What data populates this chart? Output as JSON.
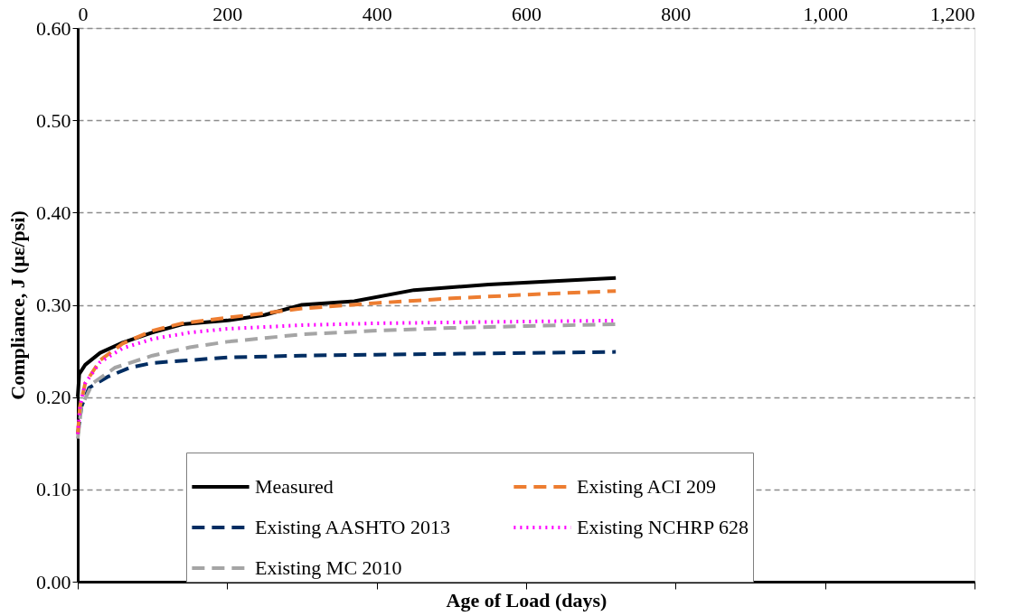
{
  "chart_data": {
    "type": "line",
    "xlabel": "Age of Load (days)",
    "ylabel": "Compliance, J (με/psi)",
    "xlim": [
      0,
      1200
    ],
    "xticks": [
      0,
      200,
      400,
      600,
      800,
      {
        "value": 1000,
        "label": "1,000"
      },
      {
        "value": 1200,
        "label": "1,200"
      }
    ],
    "ylim": [
      0,
      0.6
    ],
    "yticks": [
      {
        "value": 0,
        "label": "0.00"
      },
      {
        "value": 0.1,
        "label": "0.10"
      },
      {
        "value": 0.2,
        "label": "0.20"
      },
      {
        "value": 0.3,
        "label": "0.30"
      },
      {
        "value": 0.4,
        "label": "0.40"
      },
      {
        "value": 0.5,
        "label": "0.50"
      },
      {
        "value": 0.6,
        "label": "0.60"
      }
    ],
    "grid": "y",
    "legend": "bottom",
    "marker": "none",
    "series": [
      {
        "name": "Measured",
        "color": "#000000",
        "line_style": "solid",
        "x": [
          0,
          2,
          10,
          30,
          60,
          100,
          140,
          200,
          250,
          300,
          370,
          450,
          550,
          720
        ],
        "values": [
          0.2,
          0.225,
          0.235,
          0.248,
          0.259,
          0.27,
          0.279,
          0.283,
          0.289,
          0.3,
          0.304,
          0.316,
          0.322,
          0.329
        ]
      },
      {
        "name": "Existing AASHTO 2013",
        "color": "#002d62",
        "line_style": "dashed",
        "x": [
          0,
          5,
          15,
          40,
          70,
          100,
          150,
          200,
          300,
          400,
          500,
          720
        ],
        "values": [
          0.16,
          0.19,
          0.21,
          0.222,
          0.232,
          0.237,
          0.24,
          0.243,
          0.245,
          0.246,
          0.247,
          0.249
        ]
      },
      {
        "name": "Existing MC 2010",
        "color": "#a5a5a5",
        "line_style": "dashed",
        "x": [
          0,
          5,
          20,
          50,
          100,
          150,
          200,
          300,
          400,
          500,
          600,
          720
        ],
        "values": [
          0.155,
          0.19,
          0.215,
          0.232,
          0.245,
          0.254,
          0.26,
          0.268,
          0.272,
          0.275,
          0.277,
          0.279
        ]
      },
      {
        "name": "Existing ACI 209",
        "color": "#ed7d31",
        "line_style": "dashed",
        "x": [
          0,
          3,
          10,
          30,
          60,
          100,
          140,
          200,
          300,
          400,
          500,
          600,
          720
        ],
        "values": [
          0.16,
          0.19,
          0.215,
          0.24,
          0.258,
          0.272,
          0.28,
          0.286,
          0.296,
          0.302,
          0.307,
          0.311,
          0.315
        ]
      },
      {
        "name": "Existing NCHRP 628",
        "color": "#ff00ff",
        "line_style": "dotted",
        "x": [
          0,
          3,
          10,
          30,
          60,
          100,
          150,
          200,
          300,
          400,
          500,
          720
        ],
        "values": [
          0.16,
          0.19,
          0.215,
          0.238,
          0.253,
          0.263,
          0.27,
          0.274,
          0.278,
          0.28,
          0.281,
          0.283
        ]
      }
    ]
  }
}
